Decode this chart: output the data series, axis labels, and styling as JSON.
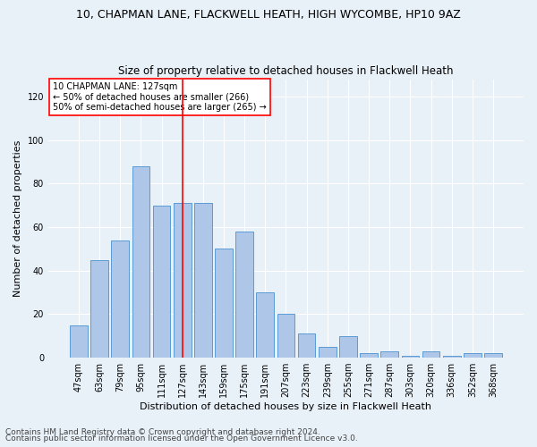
{
  "title": "10, CHAPMAN LANE, FLACKWELL HEATH, HIGH WYCOMBE, HP10 9AZ",
  "subtitle": "Size of property relative to detached houses in Flackwell Heath",
  "xlabel": "Distribution of detached houses by size in Flackwell Heath",
  "ylabel": "Number of detached properties",
  "footer1": "Contains HM Land Registry data © Crown copyright and database right 2024.",
  "footer2": "Contains public sector information licensed under the Open Government Licence v3.0.",
  "categories": [
    "47sqm",
    "63sqm",
    "79sqm",
    "95sqm",
    "111sqm",
    "127sqm",
    "143sqm",
    "159sqm",
    "175sqm",
    "191sqm",
    "207sqm",
    "223sqm",
    "239sqm",
    "255sqm",
    "271sqm",
    "287sqm",
    "303sqm",
    "320sqm",
    "336sqm",
    "352sqm",
    "368sqm"
  ],
  "values": [
    15,
    45,
    54,
    88,
    70,
    71,
    71,
    50,
    58,
    30,
    20,
    11,
    5,
    10,
    2,
    3,
    1,
    3,
    1,
    2,
    2
  ],
  "bar_color": "#aec6e8",
  "bar_edge_color": "#5b9bd5",
  "vline_x": 5,
  "vline_color": "red",
  "annotation_text": "10 CHAPMAN LANE: 127sqm\n← 50% of detached houses are smaller (266)\n50% of semi-detached houses are larger (265) →",
  "annotation_box_color": "white",
  "annotation_box_edge_color": "red",
  "ylim": [
    0,
    128
  ],
  "yticks": [
    0,
    20,
    40,
    60,
    80,
    100,
    120
  ],
  "background_color": "#e8f0f8",
  "grid_color": "white",
  "title_fontsize": 9,
  "subtitle_fontsize": 8.5,
  "tick_fontsize": 7,
  "label_fontsize": 8,
  "footer_fontsize": 6.5
}
